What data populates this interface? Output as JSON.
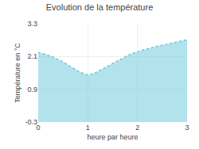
{
  "chart_data": {
    "type": "area",
    "title": "Evolution de la température",
    "x_label": "heure par heure",
    "y_label": "Température en °C",
    "x": [
      0,
      0.15,
      0.3,
      0.5,
      0.7,
      0.85,
      1.0,
      1.15,
      1.3,
      1.5,
      1.7,
      1.85,
      2.0,
      2.2,
      2.4,
      2.6,
      2.8,
      3.0
    ],
    "values": [
      2.25,
      2.18,
      2.08,
      1.9,
      1.68,
      1.52,
      1.42,
      1.5,
      1.65,
      1.85,
      2.05,
      2.18,
      2.28,
      2.38,
      2.48,
      2.55,
      2.63,
      2.72
    ],
    "color": "#66c8dc",
    "line_style": "dotted",
    "xlim": [
      0,
      3
    ],
    "xticks": [
      0,
      1,
      2,
      3
    ],
    "ylim": [
      -0.3,
      3.3
    ],
    "yticks": [
      -0.3,
      0.9,
      2.1,
      3.3
    ],
    "grid": true
  }
}
